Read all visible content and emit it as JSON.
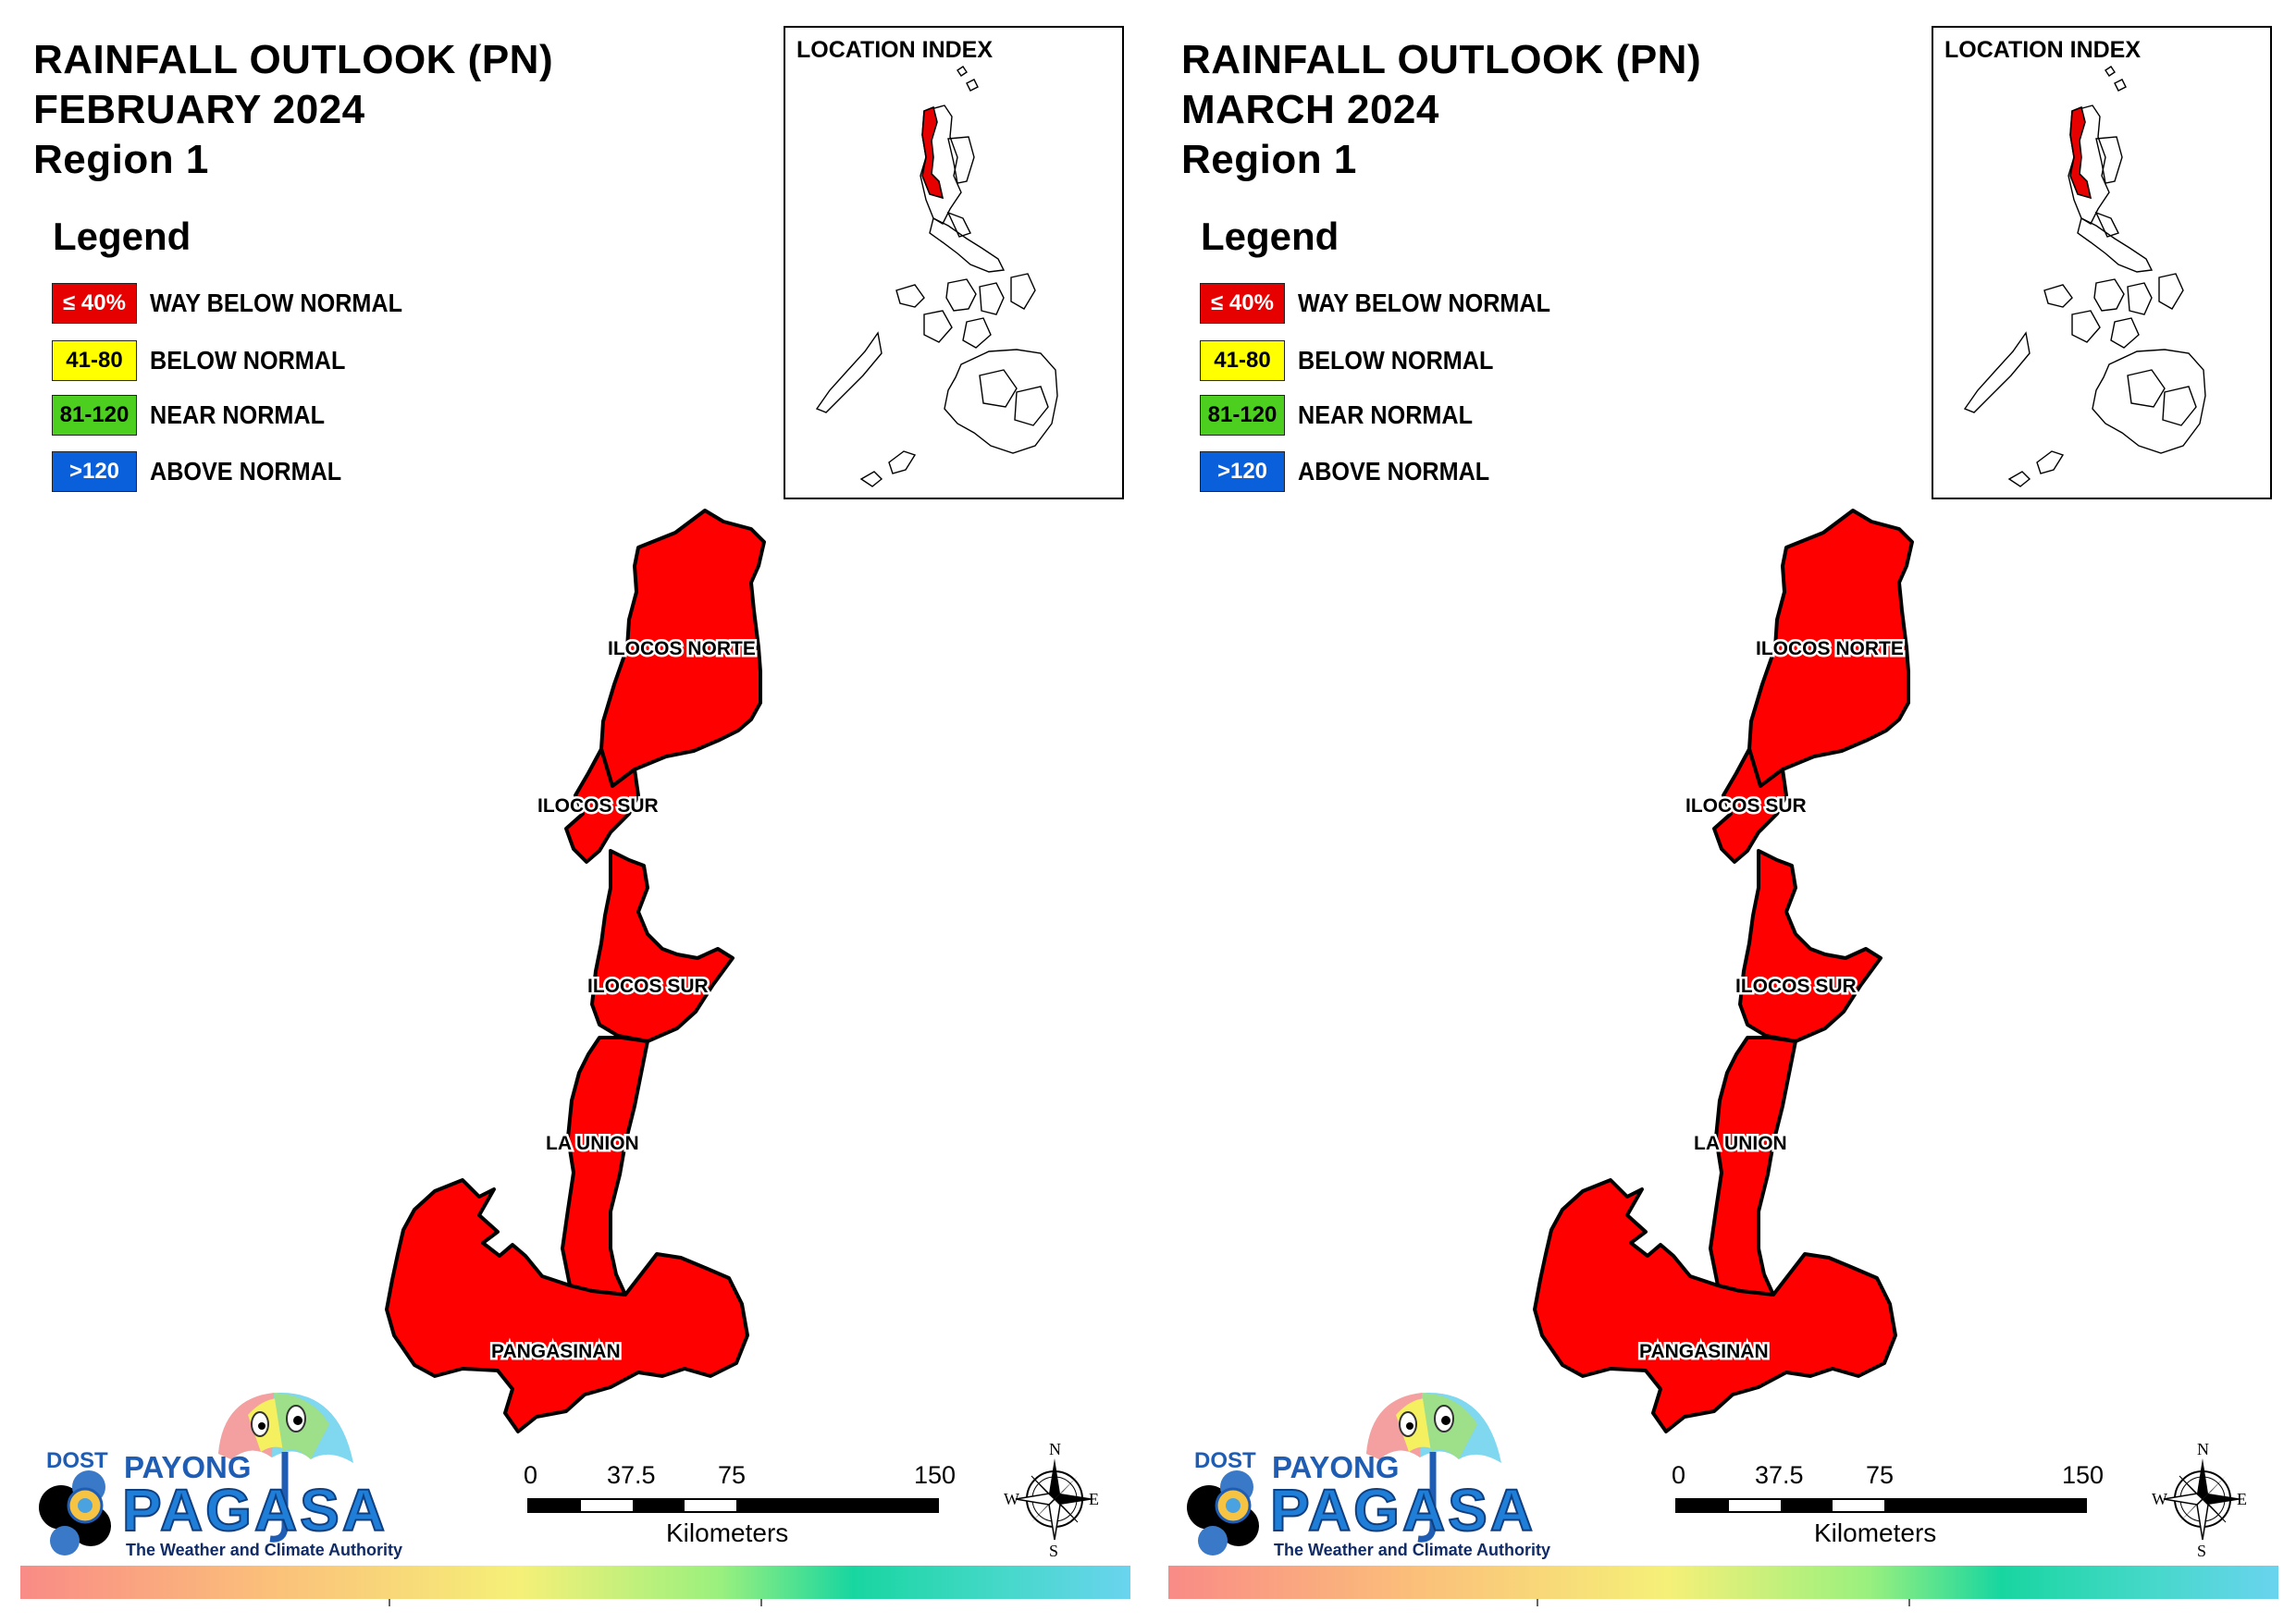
{
  "panels": [
    {
      "title_line1": "RAINFALL OUTLOOK (PN)",
      "title_line2": "FEBRUARY 2024",
      "title_line3": "Region 1"
    },
    {
      "title_line1": "RAINFALL OUTLOOK (PN)",
      "title_line2": "MARCH 2024",
      "title_line3": "Region 1"
    }
  ],
  "legend": {
    "title": "Legend",
    "items": [
      {
        "range": "≤ 40%",
        "label": "WAY BELOW NORMAL",
        "color": "#e60000",
        "text_color": "#ffffff"
      },
      {
        "range": "41-80",
        "label": "BELOW NORMAL",
        "color": "#ffff00",
        "text_color": "#000000"
      },
      {
        "range": "81-120",
        "label": "NEAR NORMAL",
        "color": "#4ccf1e",
        "text_color": "#000000"
      },
      {
        "range": ">120",
        "label": "ABOVE NORMAL",
        "color": "#0a5fdb",
        "text_color": "#ffffff"
      }
    ]
  },
  "location_index": {
    "title": "LOCATION INDEX",
    "highlight_color": "#e60000"
  },
  "map": {
    "fill_color": "#ff0000",
    "provinces": [
      {
        "name": "ILOCOS NORTE",
        "category": "WAY BELOW NORMAL"
      },
      {
        "name": "ILOCOS SUR",
        "category": "WAY BELOW NORMAL"
      },
      {
        "name": "ILOCOS SUR",
        "category": "WAY BELOW NORMAL"
      },
      {
        "name": "LA UNION",
        "category": "WAY BELOW NORMAL"
      },
      {
        "name": "PANGASINAN",
        "category": "WAY BELOW NORMAL"
      }
    ]
  },
  "scale_bar": {
    "ticks": [
      "0",
      "37.5",
      "75",
      "150"
    ],
    "unit": "Kilometers"
  },
  "compass": {
    "n": "N",
    "s": "S",
    "e": "E",
    "w": "W"
  },
  "logo": {
    "dost": "DOST",
    "payong": "PAYONG",
    "pagasa": "PAGASA",
    "tagline": "The Weather and Climate Authority"
  }
}
